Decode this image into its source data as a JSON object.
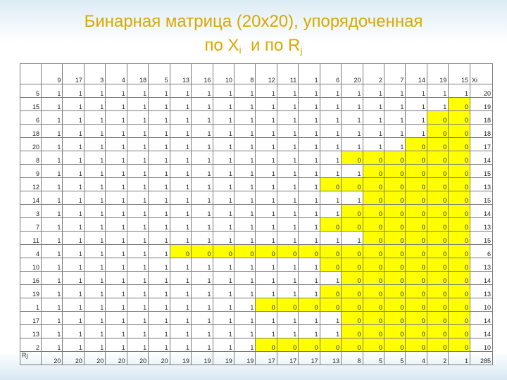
{
  "title": {
    "line1": "Бинарная матрица  (20х20), упорядоченная",
    "line2_a": "по X",
    "line2_a_sub": "i",
    "line2_b": "и по R",
    "line2_b_sub": "j"
  },
  "table": {
    "column_labels": [
      9,
      17,
      3,
      4,
      18,
      5,
      13,
      16,
      10,
      8,
      12,
      11,
      1,
      6,
      20,
      2,
      7,
      14,
      19,
      15
    ],
    "sum_label": "Xi",
    "rows": [
      {
        "label": 5,
        "values": [
          1,
          1,
          1,
          1,
          1,
          1,
          1,
          1,
          1,
          1,
          1,
          1,
          1,
          1,
          1,
          1,
          1,
          1,
          1,
          1
        ],
        "sum": 20
      },
      {
        "label": 15,
        "values": [
          1,
          1,
          1,
          1,
          1,
          1,
          1,
          1,
          1,
          1,
          1,
          1,
          1,
          1,
          1,
          1,
          1,
          1,
          1,
          0
        ],
        "sum": 19
      },
      {
        "label": 6,
        "values": [
          1,
          1,
          1,
          1,
          1,
          1,
          1,
          1,
          1,
          1,
          1,
          1,
          1,
          1,
          1,
          1,
          1,
          1,
          0,
          0
        ],
        "sum": 18
      },
      {
        "label": 18,
        "values": [
          1,
          1,
          1,
          1,
          1,
          1,
          1,
          1,
          1,
          1,
          1,
          1,
          1,
          1,
          1,
          1,
          1,
          1,
          0,
          0
        ],
        "sum": 18
      },
      {
        "label": 20,
        "values": [
          1,
          1,
          1,
          1,
          1,
          1,
          1,
          1,
          1,
          1,
          1,
          1,
          1,
          1,
          1,
          1,
          1,
          0,
          0,
          0
        ],
        "sum": 17
      },
      {
        "label": 8,
        "values": [
          1,
          1,
          1,
          1,
          1,
          1,
          1,
          1,
          1,
          1,
          1,
          1,
          1,
          1,
          0,
          0,
          0,
          0,
          0,
          0
        ],
        "sum": 14
      },
      {
        "label": 9,
        "values": [
          1,
          1,
          1,
          1,
          1,
          1,
          1,
          1,
          1,
          1,
          1,
          1,
          1,
          1,
          1,
          0,
          0,
          0,
          0,
          0
        ],
        "sum": 15
      },
      {
        "label": 12,
        "values": [
          1,
          1,
          1,
          1,
          1,
          1,
          1,
          1,
          1,
          1,
          1,
          1,
          1,
          0,
          0,
          0,
          0,
          0,
          0,
          0
        ],
        "sum": 13
      },
      {
        "label": 14,
        "values": [
          1,
          1,
          1,
          1,
          1,
          1,
          1,
          1,
          1,
          1,
          1,
          1,
          1,
          1,
          1,
          0,
          0,
          0,
          0,
          0
        ],
        "sum": 15
      },
      {
        "label": 3,
        "values": [
          1,
          1,
          1,
          1,
          1,
          1,
          1,
          1,
          1,
          1,
          1,
          1,
          1,
          1,
          0,
          0,
          0,
          0,
          0,
          0
        ],
        "sum": 14
      },
      {
        "label": 7,
        "values": [
          1,
          1,
          1,
          1,
          1,
          1,
          1,
          1,
          1,
          1,
          1,
          1,
          1,
          0,
          0,
          0,
          0,
          0,
          0,
          0
        ],
        "sum": 13
      },
      {
        "label": 11,
        "values": [
          1,
          1,
          1,
          1,
          1,
          1,
          1,
          1,
          1,
          1,
          1,
          1,
          1,
          1,
          1,
          0,
          0,
          0,
          0,
          0
        ],
        "sum": 15
      },
      {
        "label": 4,
        "values": [
          1,
          1,
          1,
          1,
          1,
          1,
          0,
          0,
          0,
          0,
          0,
          0,
          0,
          0,
          0,
          0,
          0,
          0,
          0,
          0
        ],
        "sum": 6
      },
      {
        "label": 10,
        "values": [
          1,
          1,
          1,
          1,
          1,
          1,
          1,
          1,
          1,
          1,
          1,
          1,
          1,
          0,
          0,
          0,
          0,
          0,
          0,
          0
        ],
        "sum": 13
      },
      {
        "label": 16,
        "values": [
          1,
          1,
          1,
          1,
          1,
          1,
          1,
          1,
          1,
          1,
          1,
          1,
          1,
          1,
          0,
          0,
          0,
          0,
          0,
          0
        ],
        "sum": 14
      },
      {
        "label": 19,
        "values": [
          1,
          1,
          1,
          1,
          1,
          1,
          1,
          1,
          1,
          1,
          1,
          1,
          1,
          0,
          0,
          0,
          0,
          0,
          0,
          0
        ],
        "sum": 13
      },
      {
        "label": 1,
        "values": [
          1,
          1,
          1,
          1,
          1,
          1,
          1,
          1,
          1,
          1,
          0,
          0,
          0,
          0,
          0,
          0,
          0,
          0,
          0,
          0
        ],
        "sum": 10
      },
      {
        "label": 17,
        "values": [
          1,
          1,
          1,
          1,
          1,
          1,
          1,
          1,
          1,
          1,
          1,
          1,
          1,
          1,
          0,
          0,
          0,
          0,
          0,
          0
        ],
        "sum": 14
      },
      {
        "label": 13,
        "values": [
          1,
          1,
          1,
          1,
          1,
          1,
          1,
          1,
          1,
          1,
          1,
          1,
          1,
          1,
          0,
          0,
          0,
          0,
          0,
          0
        ],
        "sum": 14
      },
      {
        "label": 2,
        "values": [
          1,
          1,
          1,
          1,
          1,
          1,
          1,
          1,
          1,
          1,
          0,
          0,
          0,
          0,
          0,
          0,
          0,
          0,
          0,
          0
        ],
        "sum": 10
      }
    ],
    "total_label": "Rj",
    "column_sums": [
      20,
      20,
      20,
      20,
      20,
      20,
      19,
      19,
      19,
      19,
      17,
      17,
      17,
      13,
      8,
      5,
      5,
      4,
      2,
      1
    ],
    "total": 285
  }
}
